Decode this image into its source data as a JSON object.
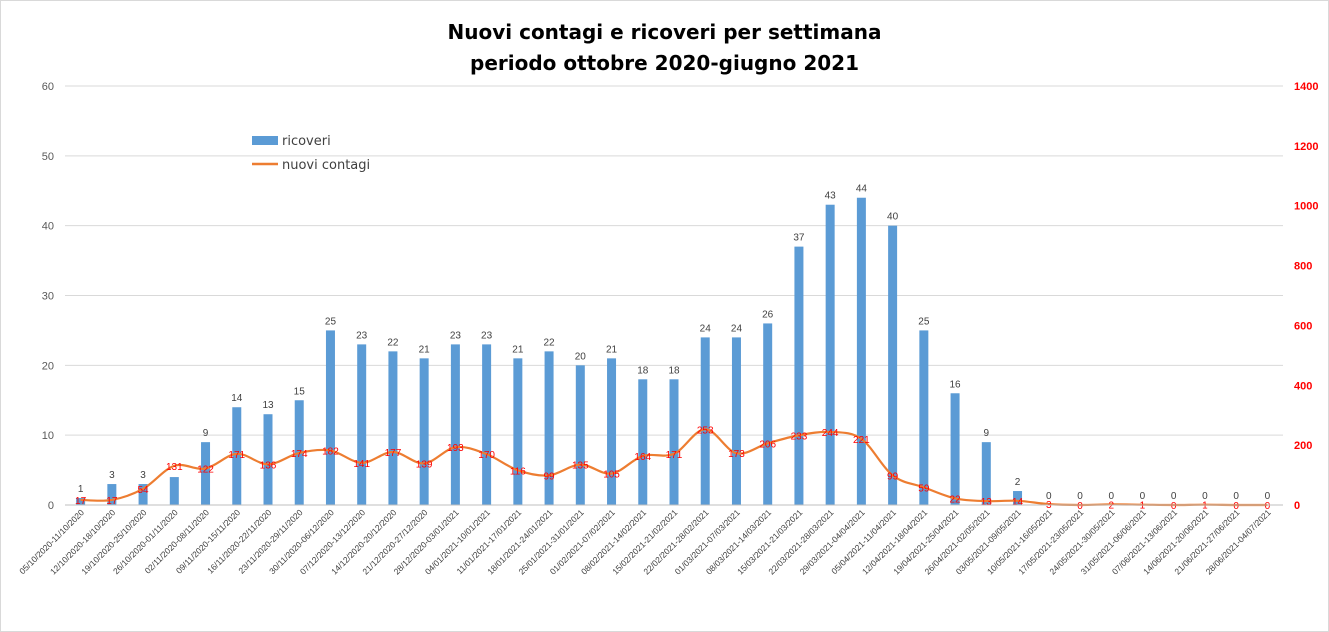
{
  "colors": {
    "bar": "#5b9bd5",
    "line": "#ed7d31",
    "right_axis": "#ff0000",
    "grid": "#d9d9d9"
  },
  "chart_data": {
    "type": "bar",
    "title": "Nuovi contagi e ricoveri per settimana",
    "subtitle": "periodo ottobre 2020-giugno 2021",
    "categories": [
      "05/10/2020-11/10/2020",
      "12/10/2020-18/10/2020",
      "19/10/2020-25/10/2020",
      "26/10/2020-01/11/2020",
      "02/11/2020-08/11/2020",
      "09/11/2020-15/11/2020",
      "16/11/2020-22/11/2020",
      "23/11/2020-29/11/2020",
      "30/11/2020-06/12/2020",
      "07/12/2020-13/12/2020",
      "14/12/2020-20/12/2020",
      "21/12/2020-27/12/2020",
      "28/12/2020-03/01/2021",
      "04/01/2021-10/01/2021",
      "11/01/2021-17/01/2021",
      "18/01/2021-24/01/2021",
      "25/01/2021-31/01/2021",
      "01/02/2021-07/02/2021",
      "08/02/2021-14/02/2021",
      "15/02/2021-21/02/2021",
      "22/02/2021-28/02/2021",
      "01/03/2021-07/03/2021",
      "08/03/2021-14/03/2021",
      "15/03/2021-21/03/2021",
      "22/03/2021-28/03/2021",
      "29/03/2021-04/04/2021",
      "05/04/2021-11/04/2021",
      "12/04/2021-18/04/2021",
      "19/04/2021-25/04/2021",
      "26/04/2021-02/05/2021",
      "03/05/2021-09/05/2021",
      "10/05/2021-16/05/2021",
      "17/05/2021-23/05/2021",
      "24/05/2021-30/05/2021",
      "31/05/2021-06/06/2021",
      "07/06/2021-13/06/2021",
      "14/06/2021-20/06/2021",
      "21/06/2021-27/06/2021",
      "28/06/2021-04/07/2021"
    ],
    "series": [
      {
        "name": "ricoveri",
        "type": "bar",
        "axis": "left",
        "values": [
          1,
          3,
          3,
          4,
          9,
          14,
          13,
          15,
          25,
          23,
          22,
          21,
          23,
          23,
          21,
          22,
          20,
          21,
          18,
          18,
          24,
          24,
          26,
          37,
          43,
          44,
          40,
          25,
          16,
          9,
          2,
          0,
          0,
          0,
          0,
          0,
          0,
          0,
          0
        ],
        "labels": [
          "1",
          "3",
          "3",
          "",
          "9",
          "14",
          "13",
          "15",
          "25",
          "23",
          "22",
          "21",
          "23",
          "23",
          "21",
          "22",
          "20",
          "21",
          "18",
          "18",
          "24",
          "24",
          "26",
          "37",
          "43",
          "44",
          "40",
          "25",
          "16",
          "9",
          "2",
          "0",
          "0",
          "0",
          "0",
          "0",
          "0",
          "0",
          "0"
        ]
      },
      {
        "name": "nuovi contagi",
        "type": "line",
        "axis": "right",
        "values": [
          17,
          17,
          54,
          131,
          122,
          171,
          136,
          174,
          182,
          141,
          177,
          139,
          193,
          170,
          116,
          99,
          135,
          105,
          164,
          171,
          253,
          173,
          206,
          233,
          244,
          221,
          99,
          59,
          22,
          13,
          14,
          3,
          0,
          2,
          1,
          0,
          1,
          0,
          0
        ]
      }
    ],
    "y_left": {
      "lim": [
        0,
        60
      ],
      "ticks": [
        "0",
        "10",
        "20",
        "30",
        "40",
        "50",
        "60"
      ]
    },
    "y_right": {
      "lim": [
        0,
        1400
      ],
      "ticks": [
        "0",
        "200",
        "400",
        "600",
        "800",
        "1000",
        "1200",
        "1400"
      ]
    },
    "legend_position": "top-left",
    "grid": true
  }
}
